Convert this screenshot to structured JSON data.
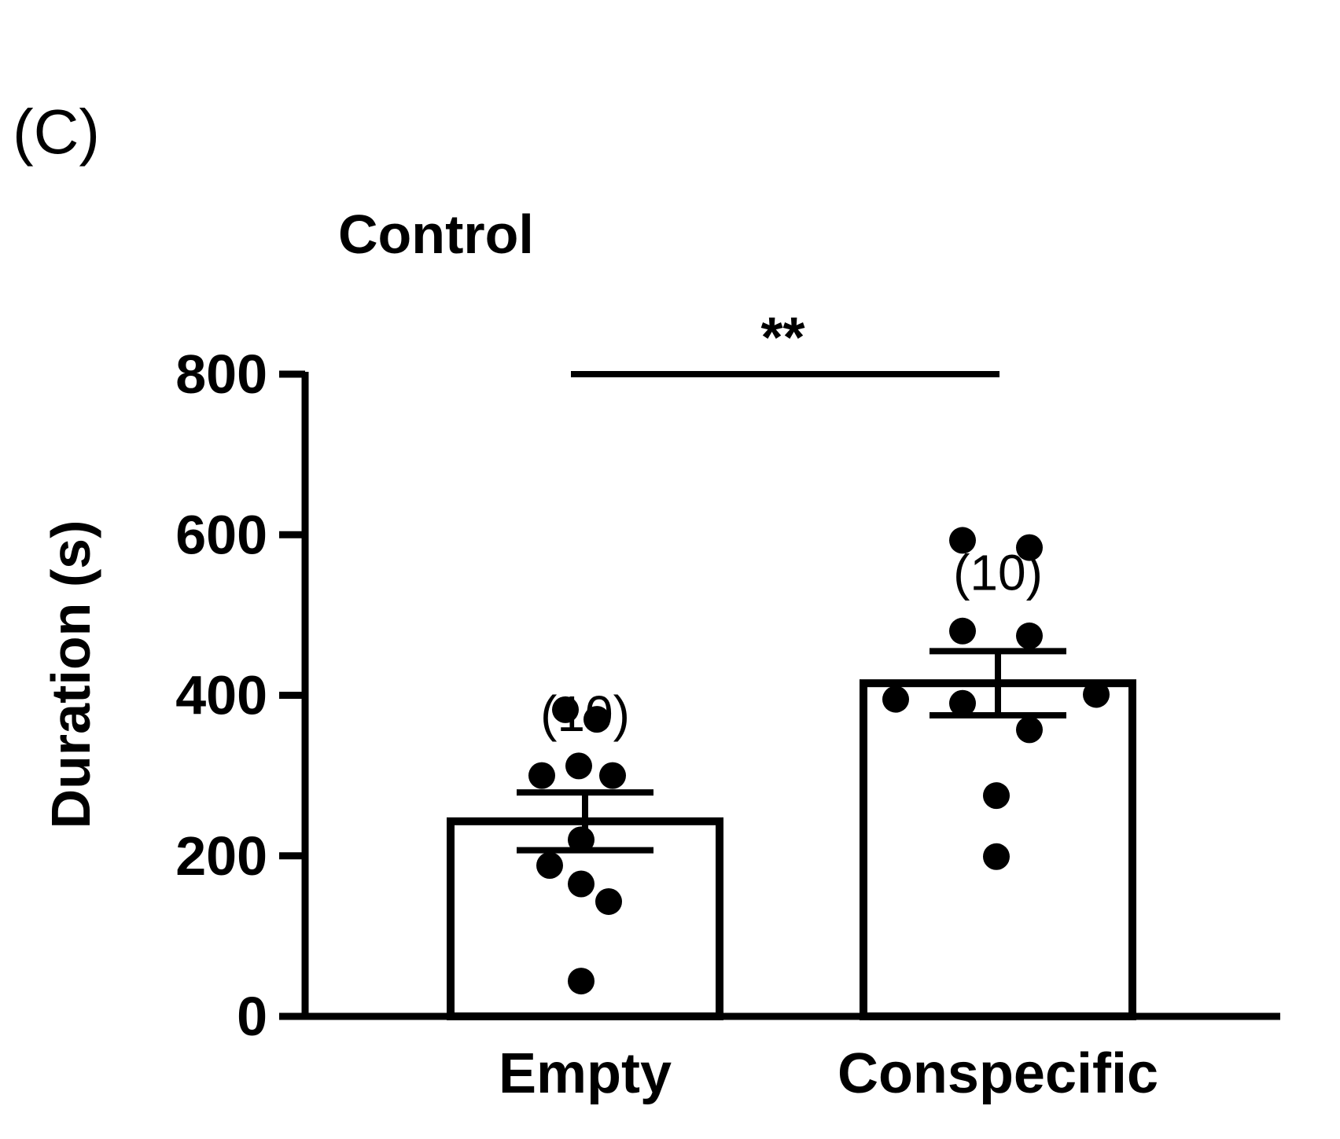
{
  "panel_label": "(C)",
  "chart_data": {
    "type": "bar",
    "title": "Control",
    "xlabel": "",
    "ylabel": "Duration (s)",
    "ylim": [
      0,
      800
    ],
    "yticks": [
      0,
      200,
      400,
      600,
      800
    ],
    "grid": false,
    "categories": [
      "Empty",
      "Conspecific"
    ],
    "series": [
      {
        "values": [
          243,
          415
        ],
        "sem": [
          36,
          40
        ],
        "n_labels": [
          "(10)",
          "(10)"
        ],
        "points": [
          [
            382,
            370,
            312,
            300,
            300,
            220,
            188,
            165,
            143,
            44
          ],
          [
            593,
            584,
            480,
            474,
            401,
            395,
            390,
            357,
            275,
            199
          ]
        ]
      }
    ],
    "significance": [
      {
        "from": "Empty",
        "to": "Conspecific",
        "label": "**"
      }
    ],
    "colors": {
      "axis": "#000000",
      "bar_fill": "#ffffff",
      "bar_stroke": "#000000",
      "point": "#000000"
    }
  }
}
